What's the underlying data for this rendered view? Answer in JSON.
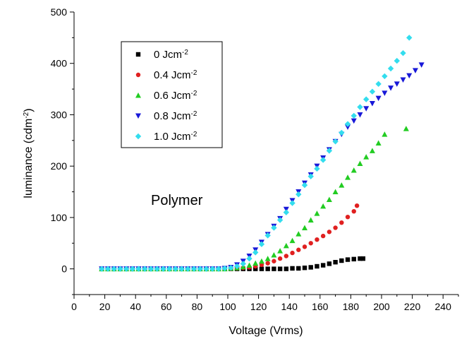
{
  "chart_data": {
    "type": "scatter",
    "title": "",
    "xlabel": "Voltage (Vrms)",
    "ylabel": "luminance (cdm",
    "ylabel_sup": "-2",
    "ylabel_end": ")",
    "xlim": [
      0,
      250
    ],
    "ylim": [
      -50,
      500
    ],
    "xticks": [
      0,
      20,
      40,
      60,
      80,
      100,
      120,
      140,
      160,
      180,
      200,
      220,
      240
    ],
    "yticks": [
      0,
      100,
      200,
      300,
      400,
      500
    ],
    "grid": false,
    "legend_placement": "top-left",
    "annotation": "Polymer",
    "series": [
      {
        "name": "0 Jcm",
        "name_sup": "-2",
        "marker": "square",
        "color": "#000000",
        "x": [
          18,
          22,
          26,
          30,
          34,
          38,
          42,
          46,
          50,
          54,
          58,
          62,
          66,
          70,
          74,
          78,
          82,
          86,
          90,
          94,
          98,
          102,
          106,
          110,
          114,
          118,
          122,
          126,
          130,
          134,
          138,
          142,
          146,
          150,
          154,
          158,
          162,
          166,
          170,
          174,
          178,
          182,
          186,
          188
        ],
        "y": [
          0,
          0,
          0,
          0,
          0,
          0,
          0,
          0,
          0,
          0,
          0,
          0,
          0,
          0,
          0,
          0,
          0,
          0,
          0,
          0,
          0,
          0,
          0,
          0,
          0,
          0,
          0,
          0,
          0,
          0,
          0,
          1,
          1,
          2,
          3,
          5,
          7,
          10,
          13,
          16,
          18,
          19,
          20,
          20
        ]
      },
      {
        "name": "0.4 Jcm",
        "name_sup": "-2",
        "marker": "circle",
        "color": "#e02020",
        "x": [
          18,
          22,
          26,
          30,
          34,
          38,
          42,
          46,
          50,
          54,
          58,
          62,
          66,
          70,
          74,
          78,
          82,
          86,
          90,
          94,
          98,
          102,
          106,
          110,
          114,
          118,
          122,
          126,
          130,
          134,
          138,
          142,
          146,
          150,
          154,
          158,
          162,
          166,
          170,
          174,
          178,
          182,
          184
        ],
        "y": [
          0,
          0,
          0,
          0,
          0,
          0,
          0,
          0,
          0,
          0,
          0,
          0,
          0,
          0,
          0,
          0,
          0,
          0,
          0,
          0,
          0,
          0,
          1,
          2,
          3,
          5,
          8,
          11,
          15,
          20,
          25,
          31,
          37,
          43,
          50,
          57,
          64,
          72,
          80,
          90,
          101,
          112,
          123
        ]
      },
      {
        "name": "0.6 Jcm",
        "name_sup": "-2",
        "marker": "triangle-up",
        "color": "#22cc22",
        "x": [
          18,
          22,
          26,
          30,
          34,
          38,
          42,
          46,
          50,
          54,
          58,
          62,
          66,
          70,
          74,
          78,
          82,
          86,
          90,
          94,
          98,
          102,
          106,
          110,
          114,
          118,
          122,
          126,
          130,
          134,
          138,
          142,
          146,
          150,
          154,
          158,
          162,
          166,
          170,
          174,
          178,
          182,
          186,
          190,
          194,
          198,
          202,
          216
        ],
        "y": [
          0,
          0,
          0,
          0,
          0,
          0,
          0,
          0,
          0,
          0,
          0,
          0,
          0,
          0,
          0,
          0,
          0,
          0,
          0,
          0,
          0,
          1,
          2,
          4,
          7,
          11,
          15,
          20,
          27,
          35,
          45,
          55,
          68,
          80,
          95,
          108,
          122,
          135,
          150,
          163,
          178,
          192,
          205,
          218,
          230,
          245,
          262,
          273
        ]
      },
      {
        "name": "0.8 Jcm",
        "name_sup": "-2",
        "marker": "triangle-down",
        "color": "#1818d8",
        "x": [
          18,
          22,
          26,
          30,
          34,
          38,
          42,
          46,
          50,
          54,
          58,
          62,
          66,
          70,
          74,
          78,
          82,
          86,
          90,
          94,
          98,
          102,
          106,
          110,
          114,
          118,
          122,
          126,
          130,
          134,
          138,
          142,
          146,
          150,
          154,
          158,
          162,
          166,
          170,
          174,
          178,
          182,
          186,
          190,
          194,
          198,
          202,
          206,
          210,
          214,
          218,
          222,
          226
        ],
        "y": [
          0,
          0,
          0,
          0,
          0,
          0,
          0,
          0,
          0,
          0,
          0,
          0,
          0,
          0,
          0,
          0,
          0,
          0,
          0,
          0,
          1,
          3,
          8,
          15,
          25,
          37,
          52,
          67,
          83,
          98,
          116,
          133,
          150,
          167,
          183,
          200,
          216,
          232,
          248,
          262,
          276,
          288,
          300,
          312,
          322,
          332,
          342,
          352,
          360,
          368,
          376,
          386,
          397
        ]
      },
      {
        "name": "1.0 Jcm",
        "name_sup": "-2",
        "marker": "diamond",
        "color": "#33ddee",
        "x": [
          18,
          22,
          26,
          30,
          34,
          38,
          42,
          46,
          50,
          54,
          58,
          62,
          66,
          70,
          74,
          78,
          82,
          86,
          90,
          94,
          98,
          102,
          106,
          110,
          114,
          118,
          122,
          126,
          130,
          134,
          138,
          142,
          146,
          150,
          154,
          158,
          162,
          166,
          170,
          174,
          178,
          182,
          186,
          190,
          194,
          198,
          202,
          206,
          210,
          214,
          218
        ],
        "y": [
          0,
          0,
          0,
          0,
          0,
          0,
          0,
          0,
          0,
          0,
          0,
          0,
          0,
          0,
          0,
          0,
          0,
          0,
          0,
          0,
          1,
          2,
          5,
          10,
          20,
          32,
          48,
          65,
          80,
          95,
          110,
          128,
          145,
          163,
          180,
          195,
          212,
          230,
          248,
          265,
          282,
          298,
          315,
          330,
          345,
          360,
          375,
          390,
          405,
          420,
          450
        ]
      }
    ]
  }
}
